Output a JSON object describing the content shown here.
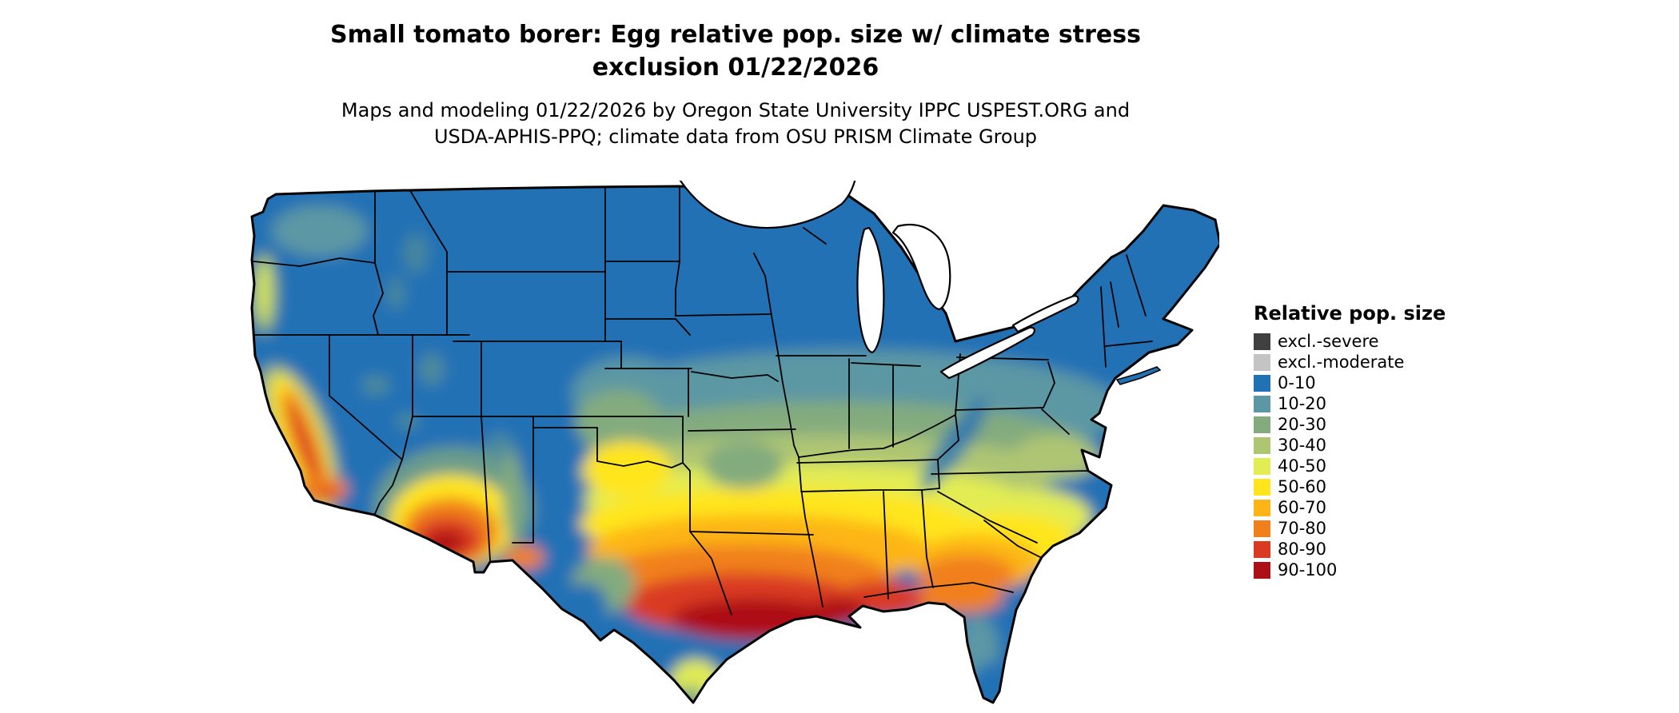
{
  "title": {
    "line1": "Small tomato borer: Egg relative pop. size w/ climate stress",
    "line2": "exclusion 01/22/2026"
  },
  "subtitle": {
    "line1": "Maps and modeling 01/22/2026 by Oregon State University IPPC USPEST.ORG and",
    "line2": "USDA-APHIS-PPQ; climate data from OSU PRISM Climate Group"
  },
  "legend": {
    "title": "Relative pop. size",
    "items": [
      {
        "label": "excl.-severe",
        "color": "#404040"
      },
      {
        "label": "excl.-moderate",
        "color": "#c4c4c4"
      },
      {
        "label": "0-10",
        "color": "#2171b5"
      },
      {
        "label": "10-20",
        "color": "#5b97a4"
      },
      {
        "label": "20-30",
        "color": "#83ab7e"
      },
      {
        "label": "30-40",
        "color": "#aec573"
      },
      {
        "label": "40-50",
        "color": "#e2ec53"
      },
      {
        "label": "50-60",
        "color": "#ffe51a"
      },
      {
        "label": "60-70",
        "color": "#fdb515"
      },
      {
        "label": "70-80",
        "color": "#f1801c"
      },
      {
        "label": "80-90",
        "color": "#d93a21"
      },
      {
        "label": "90-100",
        "color": "#ad1016"
      }
    ]
  }
}
